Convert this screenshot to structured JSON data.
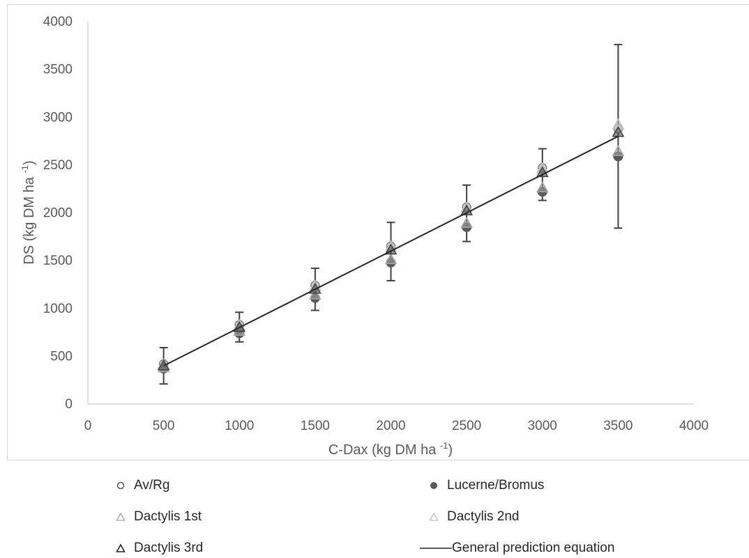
{
  "chart_data": {
    "type": "scatter",
    "xlabel": "C-Dax (kg DM ha -1)",
    "xlabel_main": "C-Dax (kg DM ha ",
    "xlabel_sup": "-1",
    "xlabel_end": ")",
    "ylabel_main": "DS (kg DM ha ",
    "ylabel_sup": "-1",
    "ylabel_end": ")",
    "xlim": [
      0,
      4000
    ],
    "ylim": [
      0,
      4000
    ],
    "xticks": [
      0,
      500,
      1000,
      1500,
      2000,
      2500,
      3000,
      3500,
      4000
    ],
    "yticks": [
      0,
      500,
      1000,
      1500,
      2000,
      2500,
      3000,
      3500,
      4000
    ],
    "grid": false,
    "legend_position": "bottom",
    "series": [
      {
        "name": "Av/Rg",
        "marker": "circle-open",
        "color": "#7f7f7f",
        "x": [
          500,
          1000,
          1500,
          2000,
          2500,
          3000,
          3500
        ],
        "y": [
          420,
          830,
          1240,
          1650,
          2060,
          2470,
          2880
        ]
      },
      {
        "name": "Lucerne/Bromus",
        "marker": "circle-filled",
        "color": "#595959",
        "x": [
          500,
          1000,
          1500,
          2000,
          2500,
          3000,
          3500
        ],
        "y": [
          370,
          740,
          1110,
          1480,
          1850,
          2220,
          2590
        ]
      },
      {
        "name": "Dactylis 1st",
        "marker": "triangle-open",
        "color": "#a6a6a6",
        "x": [
          500,
          1000,
          1500,
          2000,
          2500,
          3000,
          3500
        ],
        "y": [
          380,
          760,
          1140,
          1510,
          1890,
          2260,
          2640
        ]
      },
      {
        "name": "Dactylis 2nd",
        "marker": "triangle-open",
        "color": "#bfbfbf",
        "x": [
          500,
          1000,
          1500,
          2000,
          2500,
          3000,
          3500
        ],
        "y": [
          410,
          820,
          1230,
          1640,
          2050,
          2460,
          2920
        ]
      },
      {
        "name": "Dactylis 3rd",
        "marker": "triangle-open",
        "color": "#404040",
        "x": [
          500,
          1000,
          1500,
          2000,
          2500,
          3000,
          3500
        ],
        "y": [
          400,
          800,
          1200,
          1610,
          2020,
          2420,
          2840
        ]
      }
    ],
    "error_bars": {
      "x": [
        500,
        1000,
        1500,
        2000,
        2500,
        3000,
        3500
      ],
      "upper": [
        590,
        960,
        1420,
        1900,
        2290,
        2670,
        3760
      ],
      "lower": [
        210,
        650,
        980,
        1290,
        1700,
        2130,
        1840
      ]
    },
    "line": {
      "name": "General prediction equation",
      "x": [
        500,
        3500
      ],
      "y": [
        400,
        2800
      ]
    }
  }
}
